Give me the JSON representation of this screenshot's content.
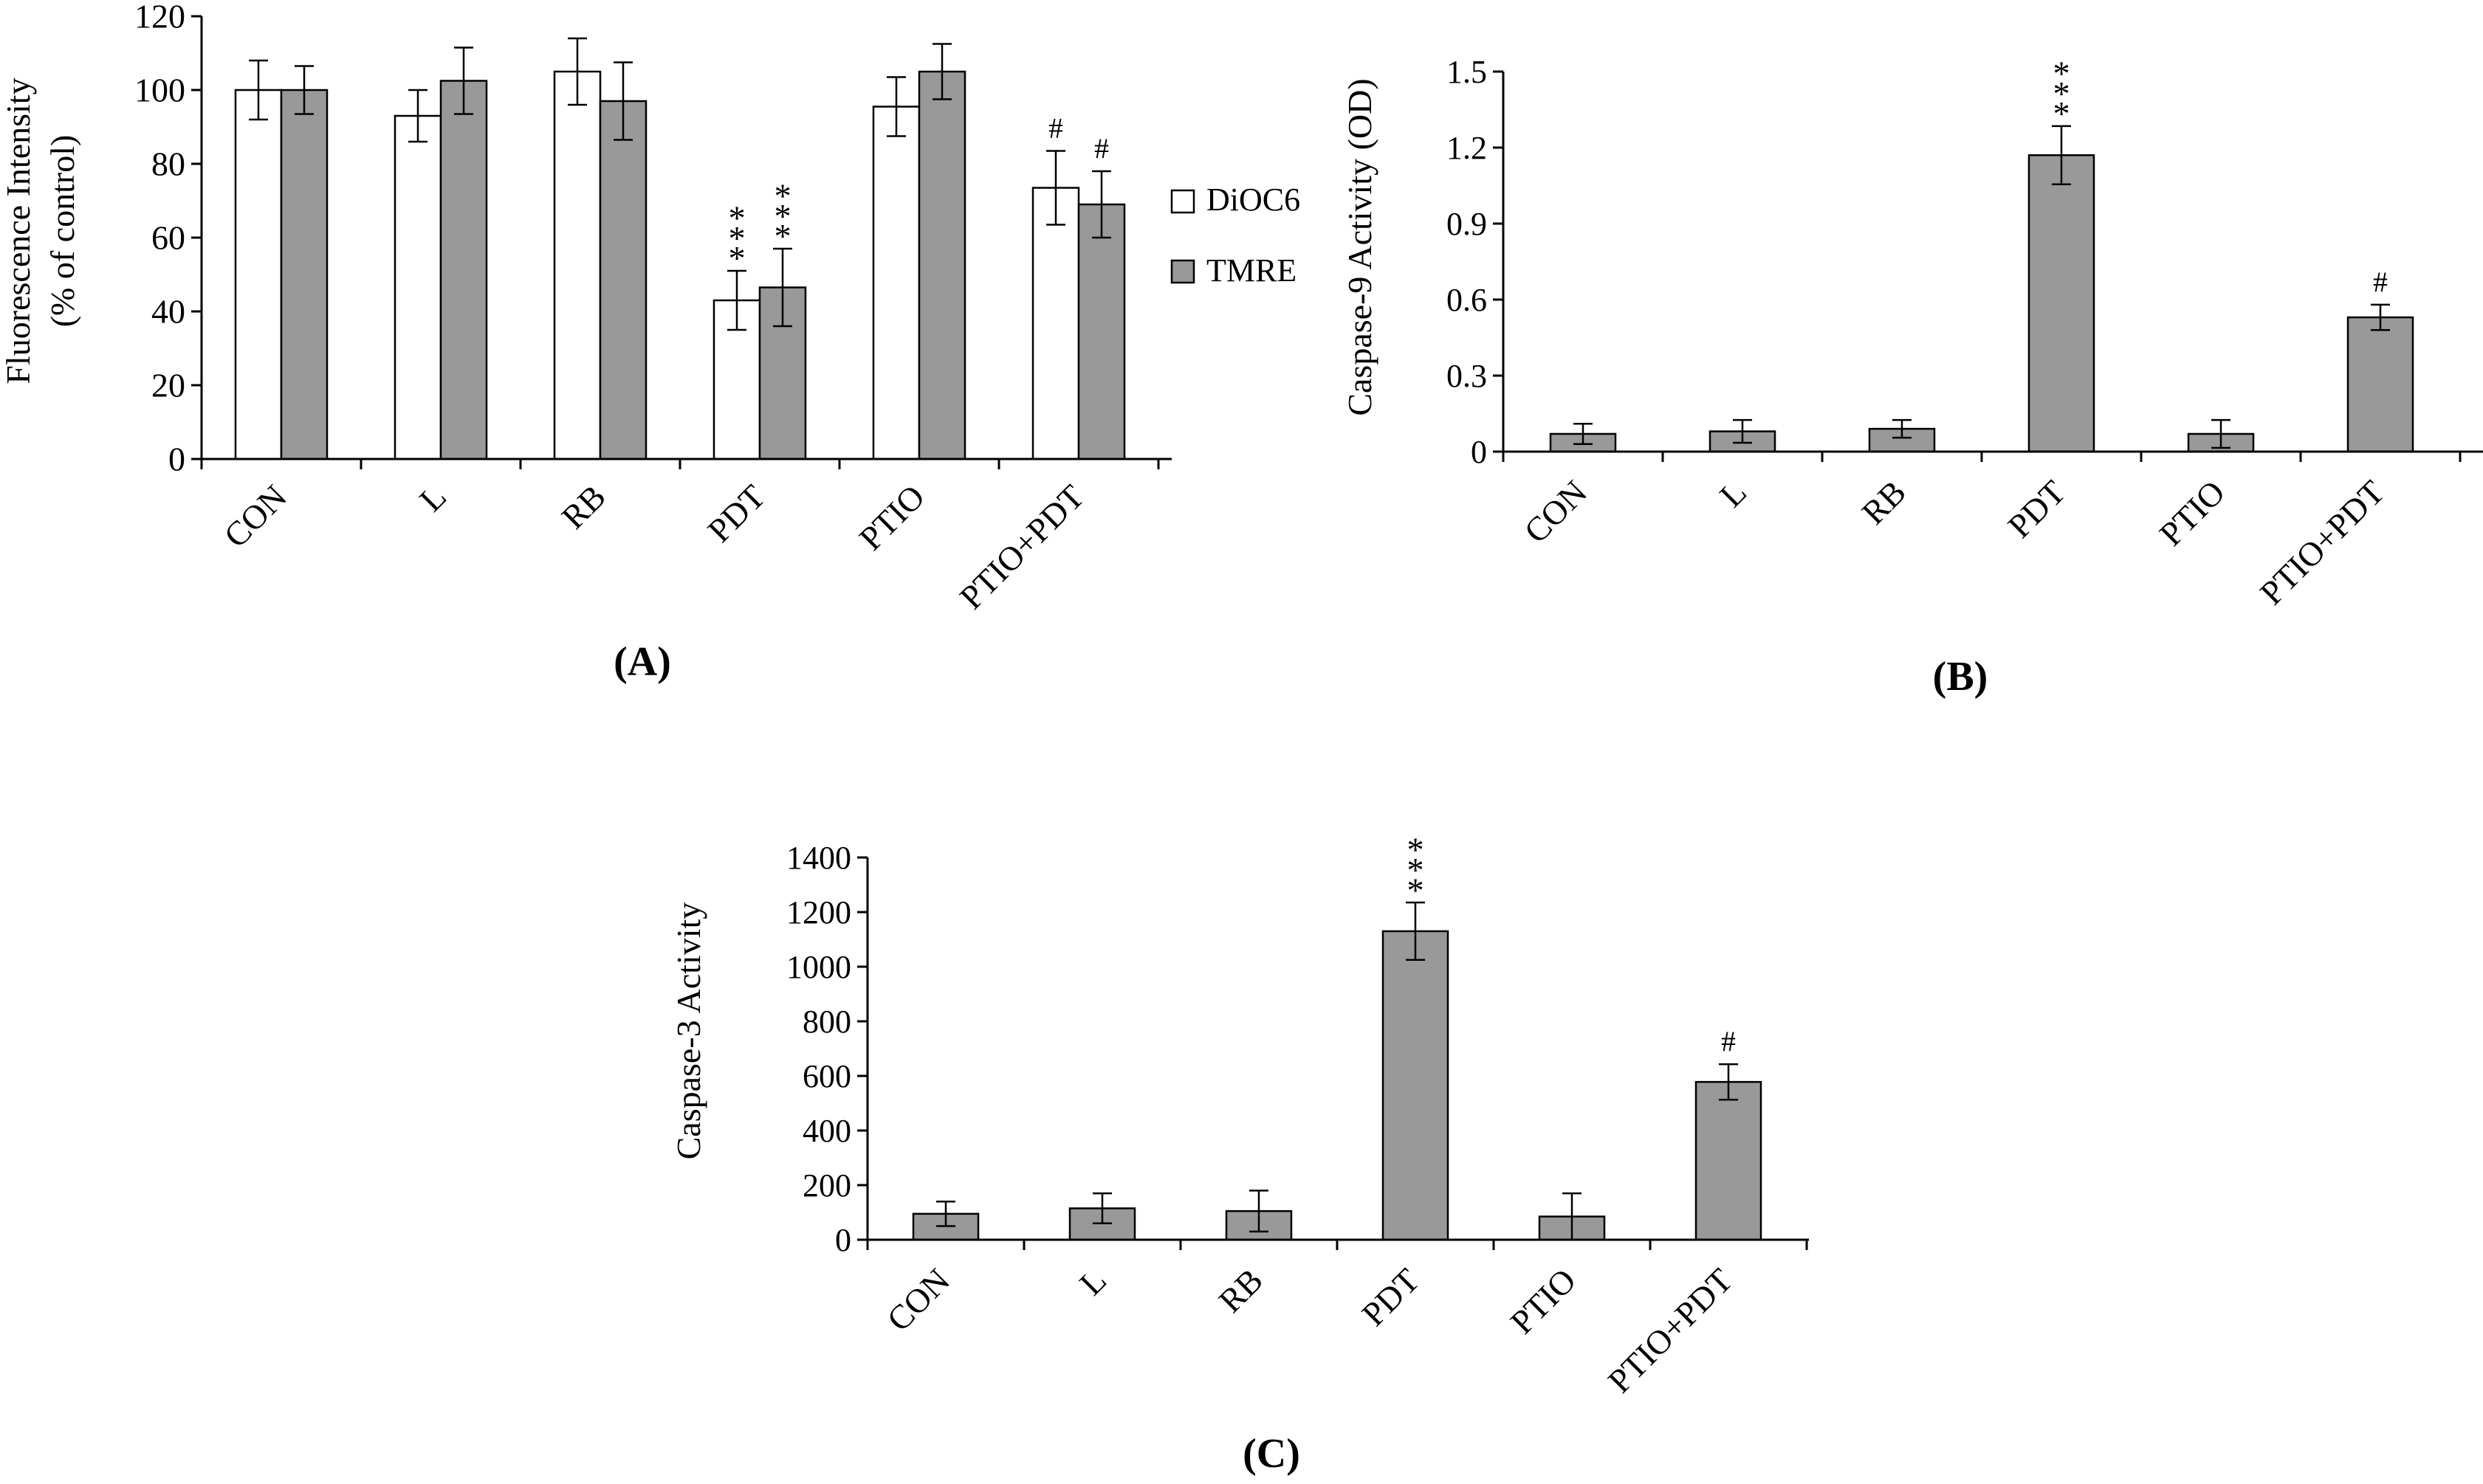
{
  "colors": {
    "open_bar": "#ffffff",
    "gray_bar": "#999999",
    "stroke": "#000000"
  },
  "chart_data": [
    {
      "type": "bar",
      "panel_label": "(A)",
      "title": "",
      "ylabel_line1": "Fluorescence Intensity",
      "ylabel_line2": "(% of control)",
      "xlabel": "",
      "ylim": [
        0,
        120
      ],
      "yticks": [
        "0",
        "20",
        "40",
        "60",
        "80",
        "100",
        "120"
      ],
      "categories": [
        "CON",
        "L",
        "RB",
        "PDT",
        "PTIO",
        "PTIO+PDT"
      ],
      "legend": {
        "position": "right",
        "entries": [
          "DiOC6",
          "TMRE"
        ]
      },
      "series": [
        {
          "name": "DiOC6",
          "fill": "open",
          "values": [
            100,
            93,
            105,
            43,
            95.5,
            73.5
          ],
          "errors": [
            8,
            7,
            9,
            8,
            8,
            10
          ],
          "annotations": [
            "",
            "",
            "",
            "***",
            "",
            "#"
          ]
        },
        {
          "name": "TMRE",
          "fill": "gray",
          "values": [
            100,
            102.5,
            97,
            46.5,
            105,
            69
          ],
          "errors": [
            6.5,
            9,
            10.5,
            10.5,
            7.5,
            9
          ],
          "annotations": [
            "",
            "",
            "",
            "***",
            "",
            "#"
          ]
        }
      ]
    },
    {
      "type": "bar",
      "panel_label": "(B)",
      "title": "",
      "ylabel": "Caspase-9 Activity (OD)",
      "xlabel": "",
      "ylim": [
        0,
        1.5
      ],
      "yticks": [
        "0",
        "0.3",
        "0.6",
        "0.9",
        "1.2",
        "1.5"
      ],
      "categories": [
        "CON",
        "L",
        "RB",
        "PDT",
        "PTIO",
        "PTIO+PDT"
      ],
      "series": [
        {
          "name": "Caspase-9",
          "fill": "gray",
          "values": [
            0.07,
            0.08,
            0.09,
            1.17,
            0.07,
            0.53
          ],
          "errors": [
            0.04,
            0.045,
            0.035,
            0.115,
            0.055,
            0.05
          ],
          "annotations": [
            "",
            "",
            "",
            "***",
            "",
            "#"
          ]
        }
      ]
    },
    {
      "type": "bar",
      "panel_label": "(C)",
      "title": "",
      "ylabel": "Caspase-3 Activity",
      "xlabel": "",
      "ylim": [
        0,
        1400
      ],
      "yticks": [
        "0",
        "200",
        "400",
        "600",
        "800",
        "1000",
        "1200",
        "1400"
      ],
      "categories": [
        "CON",
        "L",
        "RB",
        "PDT",
        "PTIO",
        "PTIO+PDT"
      ],
      "series": [
        {
          "name": "Caspase-3",
          "fill": "gray",
          "values": [
            95,
            115,
            105,
            1130,
            85,
            578
          ],
          "errors": [
            45,
            55,
            75,
            105,
            85,
            65
          ],
          "annotations": [
            "",
            "",
            "",
            "***",
            "",
            "#"
          ]
        }
      ]
    }
  ]
}
